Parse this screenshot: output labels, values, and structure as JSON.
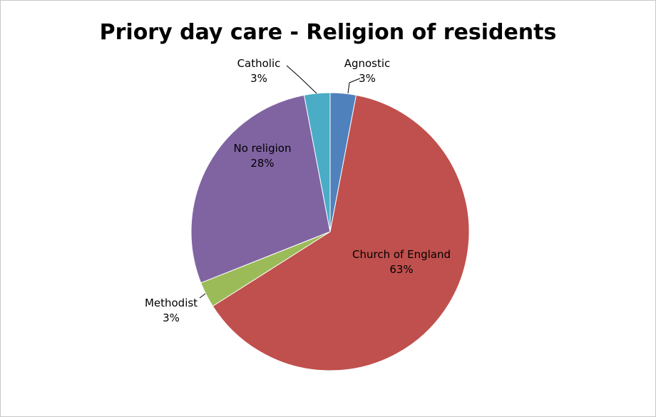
{
  "chart_data": {
    "type": "pie",
    "title": "Priory day care  - Religion of residents",
    "slices": [
      {
        "label": "Agnostic",
        "value": 3,
        "value_label": "3%",
        "color": "#4F81BD"
      },
      {
        "label": "Church of England",
        "value": 63,
        "value_label": "63%",
        "color": "#C0504D"
      },
      {
        "label": "Methodist",
        "value": 3,
        "value_label": "3%",
        "color": "#9BBB59"
      },
      {
        "label": "No religion",
        "value": 28,
        "value_label": "28%",
        "color": "#8064A2"
      },
      {
        "label": "Catholic",
        "value": 3,
        "value_label": "3%",
        "color": "#4BACC6"
      }
    ],
    "start_angle": "12 o'clock, clockwise",
    "legend": "none"
  }
}
